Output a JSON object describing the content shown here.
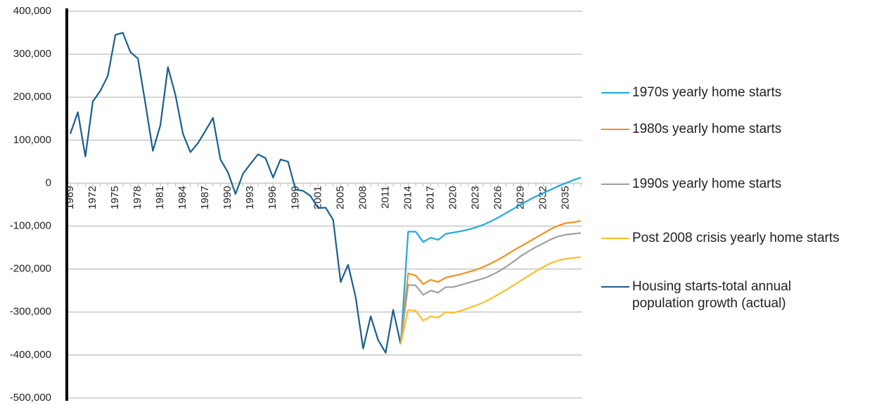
{
  "chart_data": {
    "type": "line",
    "categories": [
      "1969",
      null,
      null,
      "1972",
      null,
      null,
      "1975",
      null,
      null,
      "1978",
      null,
      null,
      "1981",
      null,
      null,
      "1984",
      null,
      null,
      "1987",
      null,
      null,
      "1990",
      null,
      null,
      "1993",
      null,
      null,
      "1996",
      null,
      null,
      "1999",
      null,
      null,
      "2001",
      null,
      null,
      "2005",
      null,
      null,
      "2008",
      null,
      null,
      "2011",
      null,
      null,
      "2014",
      null,
      null,
      "2017",
      null,
      null,
      "2020",
      null,
      null,
      "2023",
      null,
      null,
      "2026",
      null,
      null,
      "2029",
      null,
      null,
      "2032",
      null,
      null,
      "2035",
      null,
      null
    ],
    "ylim": [
      -500000,
      400000
    ],
    "yticks": [
      {
        "value": -500000,
        "label": "-500,000"
      },
      {
        "value": -400000,
        "label": "-400,000"
      },
      {
        "value": -300000,
        "label": "-300,000"
      },
      {
        "value": -200000,
        "label": "-200,000"
      },
      {
        "value": -100000,
        "label": "-100,000"
      },
      0,
      {
        "value": 100000,
        "label": "100,000"
      },
      {
        "value": 200000,
        "label": "200,000"
      },
      {
        "value": 300000,
        "label": "300,000"
      },
      {
        "value": 400000,
        "label": "400,000"
      }
    ],
    "grid": true,
    "legend": "right",
    "series": [
      {
        "name": "1970s yearly home starts",
        "color": "#1fa8e0",
        "values": [
          null,
          null,
          null,
          null,
          null,
          null,
          null,
          null,
          null,
          null,
          null,
          null,
          null,
          null,
          null,
          null,
          null,
          null,
          null,
          null,
          null,
          null,
          null,
          null,
          null,
          null,
          null,
          null,
          null,
          null,
          null,
          null,
          null,
          null,
          null,
          null,
          null,
          null,
          null,
          null,
          null,
          null,
          null,
          null,
          -375000,
          -113000,
          -113000,
          -137000,
          -127000,
          -132000,
          -118000,
          -115000,
          -112000,
          -108000,
          -103000,
          -97000,
          -89000,
          -80000,
          -70000,
          -60000,
          -50000,
          -40000,
          -31000,
          -23000,
          -15000,
          -7000,
          0,
          7000,
          13000
        ]
      },
      {
        "name": "1980s yearly home starts",
        "color": "#f0901e",
        "values": [
          null,
          null,
          null,
          null,
          null,
          null,
          null,
          null,
          null,
          null,
          null,
          null,
          null,
          null,
          null,
          null,
          null,
          null,
          null,
          null,
          null,
          null,
          null,
          null,
          null,
          null,
          null,
          null,
          null,
          null,
          null,
          null,
          null,
          null,
          null,
          null,
          null,
          null,
          null,
          null,
          null,
          null,
          null,
          null,
          -375000,
          -210000,
          -215000,
          -235000,
          -225000,
          -230000,
          -220000,
          -216000,
          -212000,
          -207000,
          -202000,
          -195000,
          -187000,
          -178000,
          -168000,
          -157000,
          -147000,
          -137000,
          -127000,
          -117000,
          -107000,
          -99000,
          -93000,
          -91000,
          -88000
        ]
      },
      {
        "name": "1990s yearly home starts",
        "color": "#a0a0a0",
        "values": [
          null,
          null,
          null,
          null,
          null,
          null,
          null,
          null,
          null,
          null,
          null,
          null,
          null,
          null,
          null,
          null,
          null,
          null,
          null,
          null,
          null,
          null,
          null,
          null,
          null,
          null,
          null,
          null,
          null,
          null,
          null,
          null,
          null,
          null,
          null,
          null,
          null,
          null,
          null,
          null,
          null,
          null,
          null,
          null,
          -375000,
          -237000,
          -238000,
          -260000,
          -250000,
          -255000,
          -242000,
          -242000,
          -237000,
          -232000,
          -227000,
          -222000,
          -215000,
          -206000,
          -195000,
          -183000,
          -170000,
          -159000,
          -149000,
          -140000,
          -131000,
          -124000,
          -120000,
          -118000,
          -116000
        ]
      },
      {
        "name": "Post 2008 crisis yearly home starts",
        "color": "#fcbf2a",
        "values": [
          null,
          null,
          null,
          null,
          null,
          null,
          null,
          null,
          null,
          null,
          null,
          null,
          null,
          null,
          null,
          null,
          null,
          null,
          null,
          null,
          null,
          null,
          null,
          null,
          null,
          null,
          null,
          null,
          null,
          null,
          null,
          null,
          null,
          null,
          null,
          null,
          null,
          null,
          null,
          null,
          null,
          null,
          null,
          null,
          -375000,
          -295000,
          -297000,
          -320000,
          -310000,
          -313000,
          -300000,
          -302000,
          -297000,
          -291000,
          -285000,
          -278000,
          -269000,
          -259000,
          -249000,
          -238000,
          -227000,
          -216000,
          -205000,
          -195000,
          -186000,
          -180000,
          -176000,
          -174000,
          -172000
        ]
      },
      {
        "name": "Housing starts-total annual population growth (actual)",
        "color": "#1b5e8f",
        "values": [
          115000,
          165000,
          62000,
          190000,
          215000,
          250000,
          345000,
          350000,
          305000,
          290000,
          185000,
          75000,
          135000,
          270000,
          205000,
          115000,
          72000,
          93000,
          122000,
          152000,
          55000,
          25000,
          -25000,
          22000,
          45000,
          67000,
          58000,
          13000,
          55000,
          50000,
          -15000,
          -18000,
          -30000,
          -58000,
          -57000,
          -85000,
          -230000,
          -190000,
          -265000,
          -385000,
          -310000,
          -365000,
          -395000,
          -295000,
          -375000,
          null,
          null,
          null,
          null,
          null,
          null,
          null,
          null,
          null,
          null,
          null,
          null,
          null,
          null,
          null,
          null,
          null,
          null,
          null,
          null,
          null,
          null,
          null,
          null
        ]
      }
    ]
  }
}
